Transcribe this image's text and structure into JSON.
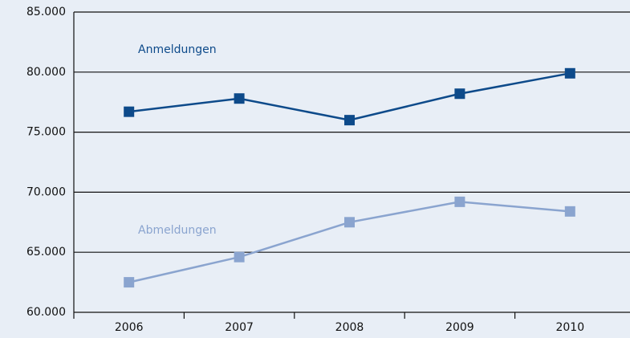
{
  "chart_data": {
    "type": "line",
    "categories": [
      "2006",
      "2007",
      "2008",
      "2009",
      "2010"
    ],
    "series": [
      {
        "name": "Anmeldungen",
        "color": "#0d4a8a",
        "values": [
          76700,
          77800,
          76000,
          78200,
          79900
        ]
      },
      {
        "name": "Abmeldungen",
        "color": "#8aa4cf",
        "values": [
          62500,
          64600,
          67500,
          69200,
          68400
        ]
      }
    ],
    "ylim": [
      60000,
      85000
    ],
    "yticks": [
      {
        "value": 60000,
        "label": "60.000"
      },
      {
        "value": 65000,
        "label": "65.000"
      },
      {
        "value": 70000,
        "label": "70.000"
      },
      {
        "value": 75000,
        "label": "75.000"
      },
      {
        "value": 80000,
        "label": "80.000"
      },
      {
        "value": 85000,
        "label": "85.000"
      }
    ],
    "grid": true
  }
}
